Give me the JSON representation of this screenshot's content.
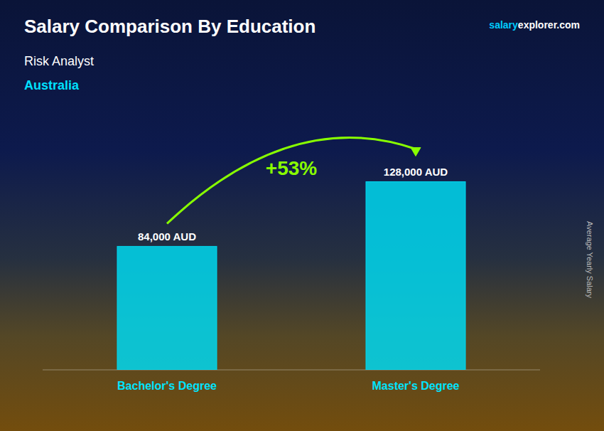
{
  "chart_data": {
    "type": "bar",
    "title": "Salary Comparison By Education",
    "subtitle": "Risk Analyst",
    "annotations": [
      "Australia",
      "salary",
      "explorer.com",
      "+53%"
    ],
    "ylabel": "Average Yearly Salary",
    "categories": [
      "Bachelor's Degree",
      "Master's Degree"
    ],
    "values": [
      84000,
      128000
    ],
    "value_labels": [
      "84,000 AUD",
      "128,000 AUD"
    ],
    "data_labels": true,
    "color": "#00d8f0",
    "ylim": [
      0,
      150000
    ],
    "grid": false,
    "tick_labels": false
  }
}
